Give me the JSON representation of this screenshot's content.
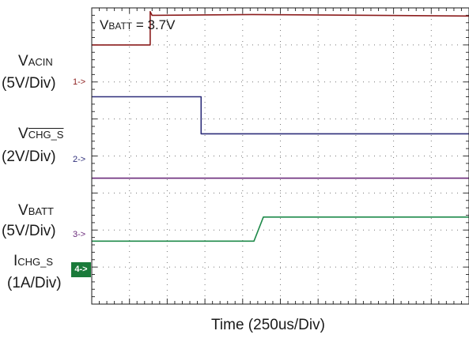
{
  "annotation": {
    "prefix": "V",
    "sub": "BATT",
    "rest": " = 3.7V"
  },
  "channels": [
    {
      "main": "V",
      "sub": "ACIN",
      "overline": false,
      "scale": "(5V/Div)",
      "marker": "1->",
      "color": "#8b1c1c"
    },
    {
      "main": "V",
      "sub": "CHG_S",
      "overline": true,
      "scale": "(2V/Div)",
      "marker": "2->",
      "color": "#2e2e7a"
    },
    {
      "main": "V",
      "sub": "BATT",
      "overline": false,
      "scale": "(5V/Div)",
      "marker": "3->",
      "color": "#6a2a7a"
    },
    {
      "main": "I",
      "sub": "CHG_S",
      "overline": false,
      "scale": "(1A/Div)",
      "marker": "4->",
      "color": "#1f8a4a"
    }
  ],
  "xlabel": "Time (250us/Div)",
  "chart_data": {
    "type": "line",
    "title": "",
    "xlabel": "Time (250us/Div)",
    "ylabel": "",
    "x_unit": "div",
    "xlim": [
      0,
      10
    ],
    "ylim": [
      0,
      8
    ],
    "grid": true,
    "series": [
      {
        "name": "V_ACIN (5V/Div)",
        "x": [
          0,
          1.55,
          1.55,
          1.6,
          4.25,
          10
        ],
        "y": [
          7.0,
          7.0,
          7.9,
          7.8,
          7.82,
          7.78
        ]
      },
      {
        "name": "V_CHG_S (2V/Div)",
        "x": [
          0,
          2.9,
          2.9,
          10
        ],
        "y": [
          5.6,
          5.6,
          4.6,
          4.6
        ]
      },
      {
        "name": "V_BATT (5V/Div)",
        "x": [
          0,
          10
        ],
        "y": [
          3.4,
          3.4
        ]
      },
      {
        "name": "I_CHG_S (1A/Div)",
        "x": [
          0,
          4.3,
          4.55,
          10
        ],
        "y": [
          1.7,
          1.7,
          2.35,
          2.35
        ]
      }
    ]
  }
}
